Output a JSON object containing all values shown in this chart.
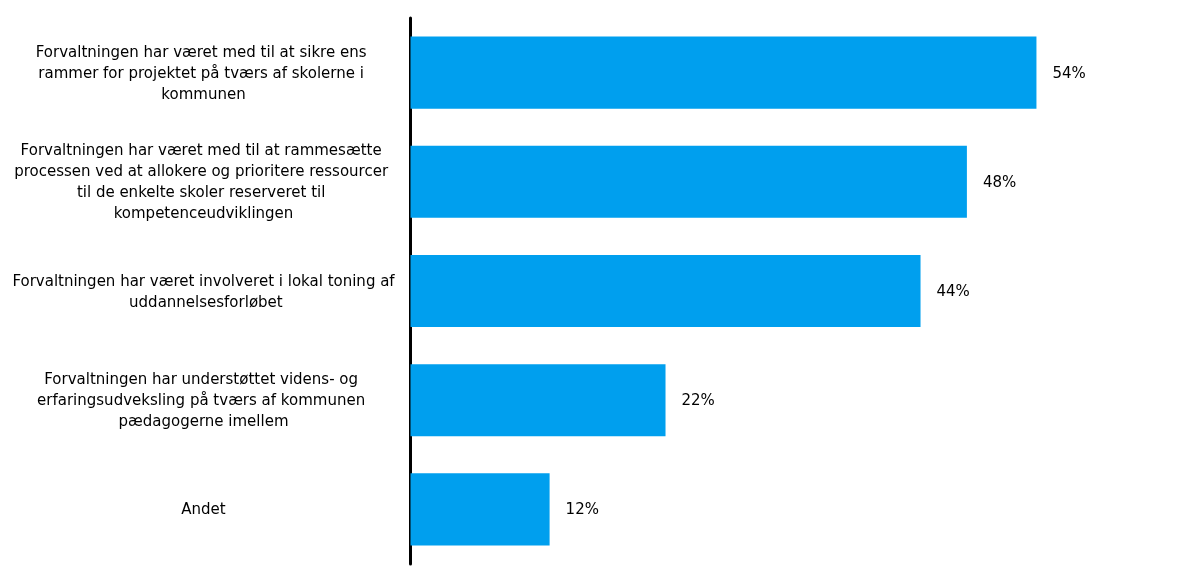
{
  "chart_data": {
    "type": "bar",
    "orientation": "horizontal",
    "categories": [
      "Forvaltningen har været med til at sikre ens rammer for projektet på tværs af skolerne i kommunen",
      "Forvaltningen har været med til at rammesætte processen ved at allokere og prioritere ressourcer til de enkelte skoler reserveret til kompetenceudviklingen",
      "Forvaltningen har været involveret i lokal toning af uddannelsesforløbet",
      "Forvaltningen har understøttet videns- og erfaringsudveksling på tværs af kommunen pædagogerne imellem",
      "Andet"
    ],
    "values": [
      54,
      48,
      44,
      22,
      12
    ],
    "value_labels": [
      "54%",
      "48%",
      "44%",
      "22%",
      "12%"
    ],
    "color": "#009fee"
  }
}
